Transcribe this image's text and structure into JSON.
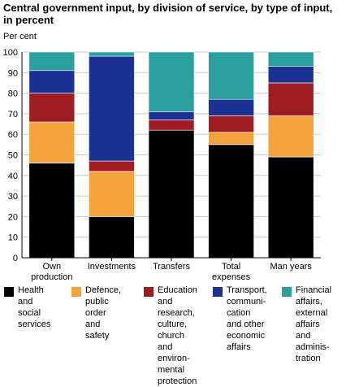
{
  "chart_data": {
    "type": "bar",
    "stacked": true,
    "title": "Central government input, by division of service, by type of input, in percent",
    "ylabel": "Per cent",
    "ylim": [
      0,
      100
    ],
    "yticks": [
      0,
      10,
      20,
      30,
      40,
      50,
      60,
      70,
      80,
      90,
      100
    ],
    "grid": true,
    "legend_position": "bottom",
    "categories": [
      "Own\nproduction",
      "Investments",
      "Transfers",
      "Total\nexpenses",
      "Man years"
    ],
    "series": [
      {
        "name": "Health\nand social\nservices",
        "color": "#000000",
        "values": [
          46,
          20,
          62,
          55,
          49
        ]
      },
      {
        "name": "Defence,\npublic order\nand safety",
        "color": "#f4a23b",
        "values": [
          20,
          22,
          0,
          6,
          20
        ]
      },
      {
        "name": "Education\nand research,\nculture, church\nand environ-\nmental\nprotection",
        "color": "#a01c23",
        "values": [
          14,
          5,
          5,
          8,
          16
        ]
      },
      {
        "name": "Transport,\ncommuni-\ncation\nand other\neconomic\naffairs",
        "color": "#1b3294",
        "values": [
          11,
          51,
          4,
          8,
          8
        ]
      },
      {
        "name": "Financial\naffairs,\nexternal\naffairs and\nadminis-\ntration",
        "color": "#2b9e9e",
        "values": [
          9,
          2,
          29,
          23,
          7
        ]
      }
    ]
  }
}
